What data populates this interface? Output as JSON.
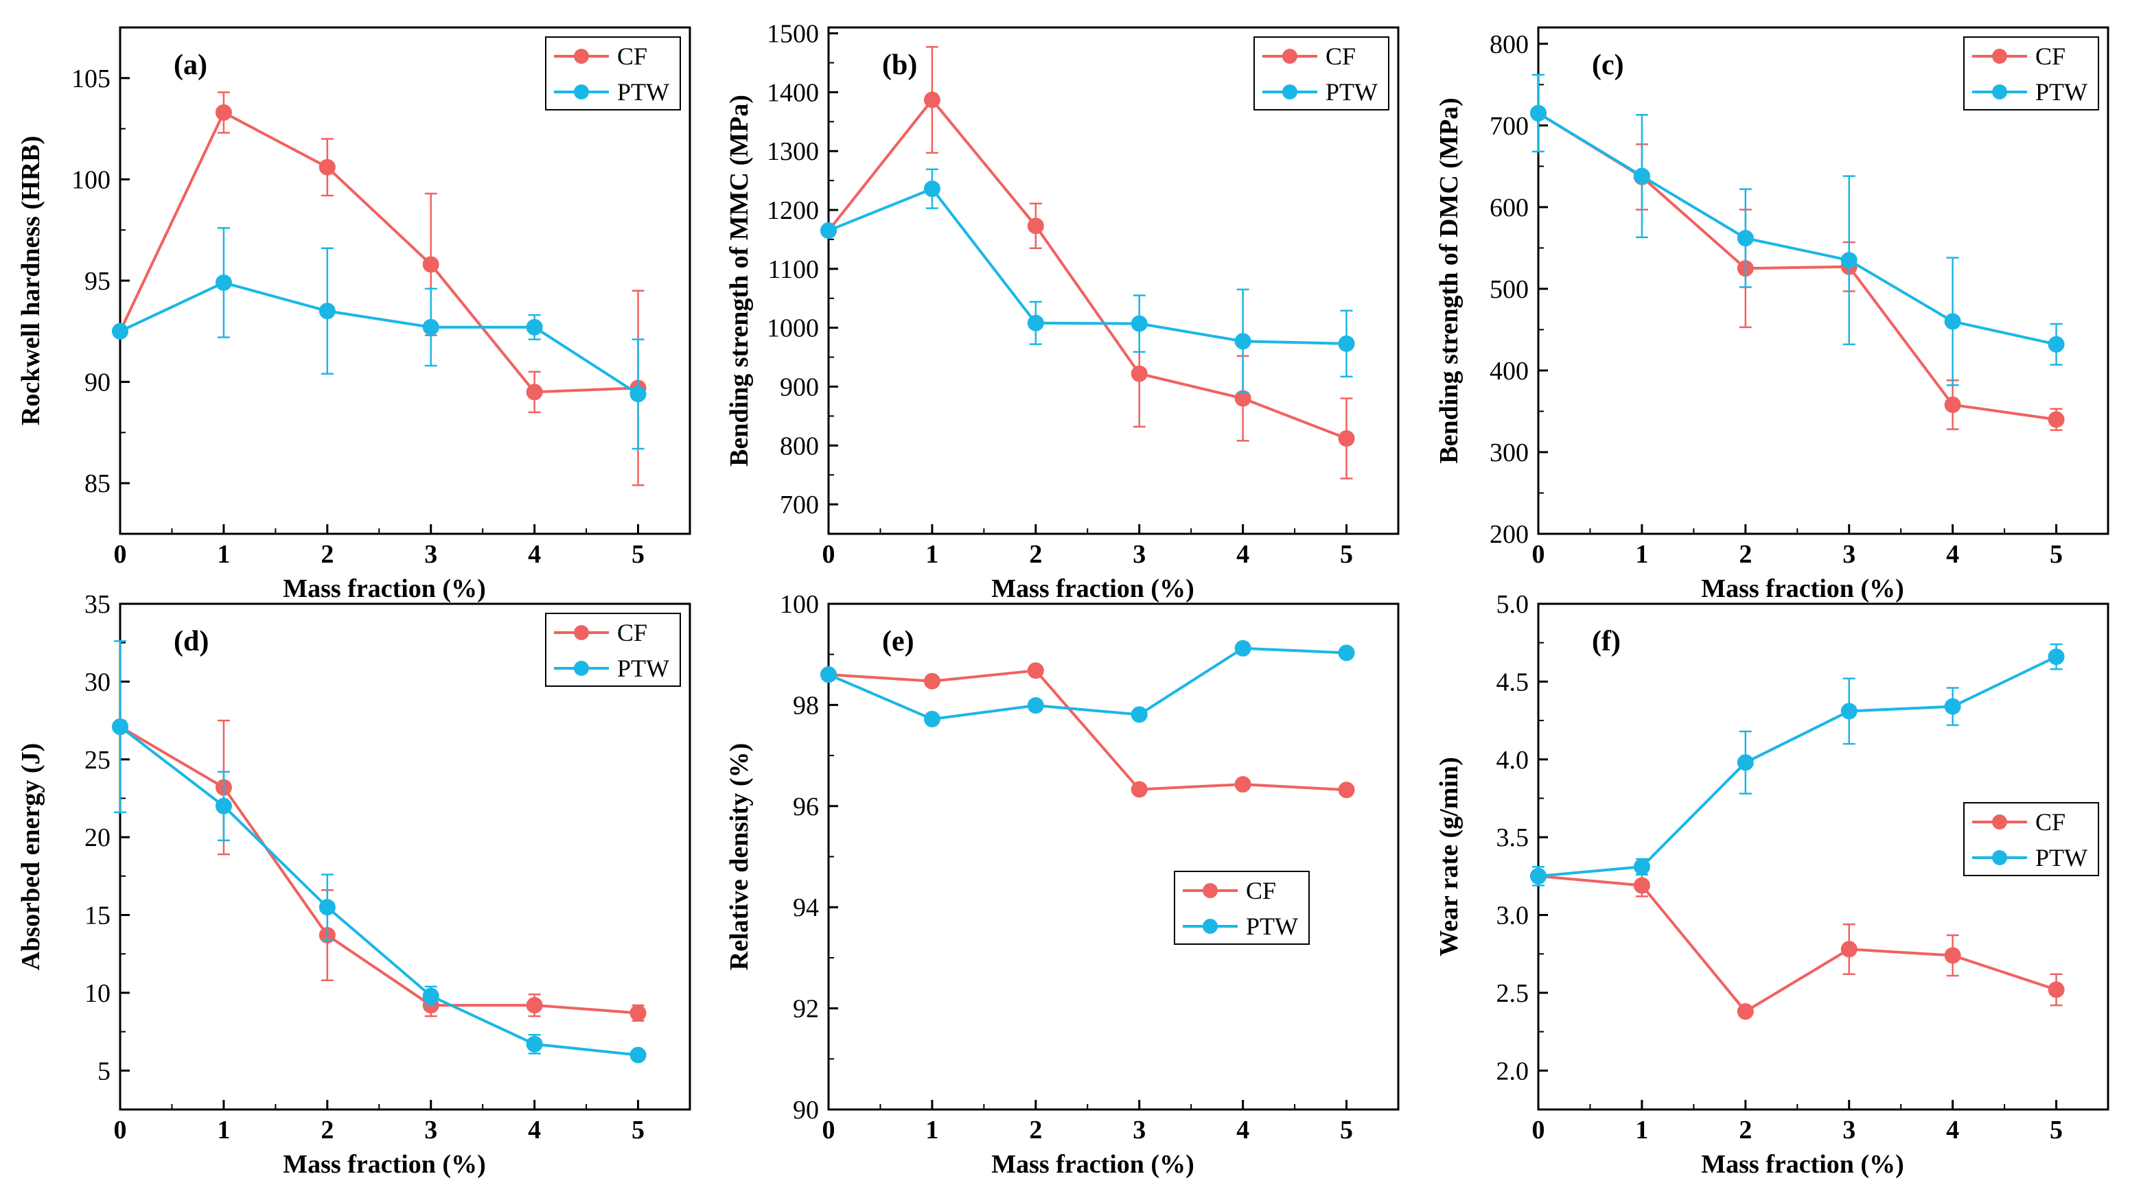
{
  "colors": {
    "cf": "#f0625f",
    "ptw": "#1ab7e6",
    "axis": "#000000"
  },
  "chart_data": [
    {
      "type": "line",
      "panel": "(a)",
      "xlabel": "Mass fraction (%)",
      "ylabel": "Rockwell hardness (HRB)",
      "x": [
        0,
        1,
        2,
        3,
        4,
        5
      ],
      "xlim": [
        0,
        5.5
      ],
      "ylim": [
        82.5,
        107.5
      ],
      "yticks": [
        85,
        90,
        95,
        100,
        105
      ],
      "legend_position": "top-right",
      "series": [
        {
          "name": "CF",
          "values": [
            92.5,
            103.3,
            100.6,
            95.8,
            89.5,
            89.7
          ],
          "errors": [
            0,
            1.0,
            1.4,
            3.5,
            1.0,
            4.8
          ]
        },
        {
          "name": "PTW",
          "values": [
            92.5,
            94.9,
            93.5,
            92.7,
            92.7,
            89.4
          ],
          "errors": [
            0,
            2.7,
            3.1,
            1.9,
            0.6,
            2.7
          ]
        }
      ]
    },
    {
      "type": "line",
      "panel": "(b)",
      "xlabel": "Mass fraction (%)",
      "ylabel": "Bending strength of  MMC (MPa)",
      "x": [
        0,
        1,
        2,
        3,
        4,
        5
      ],
      "xlim": [
        0,
        5.5
      ],
      "ylim": [
        650,
        1510
      ],
      "yticks": [
        700,
        800,
        900,
        1000,
        1100,
        1200,
        1300,
        1400,
        1500
      ],
      "legend_position": "top-right",
      "series": [
        {
          "name": "CF",
          "values": [
            1165,
            1387,
            1173,
            922,
            880,
            812
          ],
          "errors": [
            0,
            90,
            38,
            90,
            72,
            68
          ]
        },
        {
          "name": "PTW",
          "values": [
            1165,
            1236,
            1008,
            1007,
            977,
            973
          ],
          "errors": [
            0,
            33,
            36,
            48,
            88,
            56
          ]
        }
      ]
    },
    {
      "type": "line",
      "panel": "(c)",
      "xlabel": "Mass fraction (%)",
      "ylabel": "Bending strength of DMC (MPa)",
      "x": [
        0,
        1,
        2,
        3,
        4,
        5
      ],
      "xlim": [
        0,
        5.5
      ],
      "ylim": [
        200,
        820
      ],
      "yticks": [
        200,
        300,
        400,
        500,
        600,
        700,
        800
      ],
      "legend_position": "top-right",
      "series": [
        {
          "name": "CF",
          "values": [
            715,
            637,
            525,
            527,
            358,
            340
          ],
          "errors": [
            0,
            40,
            72,
            30,
            30,
            13
          ]
        },
        {
          "name": "PTW",
          "values": [
            715,
            638,
            562,
            535,
            460,
            432
          ],
          "errors": [
            47,
            75,
            60,
            103,
            78,
            25
          ]
        }
      ]
    },
    {
      "type": "line",
      "panel": "(d)",
      "xlabel": "Mass fraction (%)",
      "ylabel": "Absorbed energy (J)",
      "x": [
        0,
        1,
        2,
        3,
        4,
        5
      ],
      "xlim": [
        0,
        5.5
      ],
      "ylim": [
        2.5,
        35
      ],
      "yticks": [
        5,
        10,
        15,
        20,
        25,
        30,
        35
      ],
      "legend_position": "top-right",
      "series": [
        {
          "name": "CF",
          "values": [
            27.1,
            23.2,
            13.7,
            9.2,
            9.2,
            8.7
          ],
          "errors": [
            0,
            4.3,
            2.9,
            0.7,
            0.7,
            0.5
          ]
        },
        {
          "name": "PTW",
          "values": [
            27.1,
            22.0,
            15.5,
            9.8,
            6.7,
            6.0
          ],
          "errors": [
            5.5,
            2.2,
            2.1,
            0.6,
            0.6,
            0.2
          ]
        }
      ]
    },
    {
      "type": "line",
      "panel": "(e)",
      "xlabel": "Mass fraction (%)",
      "ylabel": "Relative density (%)",
      "x": [
        0,
        1,
        2,
        3,
        4,
        5
      ],
      "xlim": [
        0,
        5.5
      ],
      "ylim": [
        90,
        100
      ],
      "yticks": [
        90,
        92,
        94,
        96,
        98,
        100
      ],
      "legend_position": "lower-right",
      "series": [
        {
          "name": "CF",
          "values": [
            98.6,
            98.47,
            98.68,
            96.33,
            96.43,
            96.32
          ],
          "errors": [
            0,
            0,
            0,
            0,
            0,
            0
          ]
        },
        {
          "name": "PTW",
          "values": [
            98.6,
            97.72,
            97.99,
            97.81,
            99.12,
            99.03
          ],
          "errors": [
            0,
            0,
            0,
            0,
            0,
            0
          ]
        }
      ]
    },
    {
      "type": "line",
      "panel": "(f)",
      "xlabel": "Mass fraction (%)",
      "ylabel": "Wear rate  (g/min)",
      "x": [
        0,
        1,
        2,
        3,
        4,
        5
      ],
      "xlim": [
        0,
        5.5
      ],
      "ylim": [
        1.75,
        5.0
      ],
      "yticks": [
        2.0,
        2.5,
        3.0,
        3.5,
        4.0,
        4.5,
        5.0
      ],
      "ytick_decimals": 1,
      "legend_position": "middle-right",
      "series": [
        {
          "name": "CF",
          "values": [
            3.25,
            3.19,
            2.38,
            2.78,
            2.74,
            2.52
          ],
          "errors": [
            0,
            0.07,
            0,
            0.16,
            0.13,
            0.1
          ]
        },
        {
          "name": "PTW",
          "values": [
            3.25,
            3.31,
            3.98,
            4.31,
            4.34,
            4.66
          ],
          "errors": [
            0.06,
            0.05,
            0.2,
            0.21,
            0.12,
            0.08
          ]
        }
      ]
    }
  ]
}
